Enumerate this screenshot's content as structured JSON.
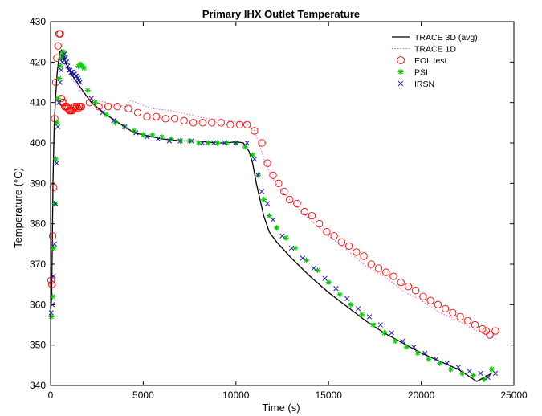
{
  "chart_data": {
    "type": "line",
    "title": "Primary IHX Outlet Temperature",
    "xlabel": "Time (s)",
    "ylabel": "Temperature (°C)",
    "xlim": [
      0,
      25000
    ],
    "ylim": [
      340,
      430
    ],
    "xticks": [
      0,
      5000,
      10000,
      15000,
      20000,
      25000
    ],
    "yticks": [
      340,
      350,
      360,
      370,
      380,
      390,
      400,
      410,
      420,
      430
    ],
    "grid": false,
    "legend_position": "top-right",
    "colors": {
      "trace3d": "#000000",
      "trace1d": "#e060e0",
      "eol": "#ff0000",
      "psi": "#00cc00",
      "irsn": "#1a1aa6"
    },
    "series": [
      {
        "name": "TRACE 3D (avg)",
        "style": "solid-line",
        "x": [
          0,
          60,
          130,
          200,
          280,
          350,
          420,
          500,
          600,
          700,
          800,
          1000,
          1200,
          1500,
          1800,
          2200,
          2600,
          3000,
          3500,
          4000,
          4500,
          5000,
          5500,
          6000,
          6500,
          7000,
          7500,
          8000,
          8500,
          9000,
          9500,
          10000,
          10400,
          10700,
          10900,
          11100,
          11300,
          11500,
          11800,
          12200,
          13000,
          14000,
          15000,
          16000,
          17000,
          18000,
          19000,
          20000,
          21000,
          22000,
          23000,
          23800
        ],
        "y": [
          358,
          362,
          390,
          405,
          412,
          417,
          420,
          422.5,
          423,
          422,
          420,
          418,
          416.5,
          414.5,
          412.5,
          410,
          408.5,
          407,
          405.5,
          404,
          402.5,
          402,
          401.5,
          401,
          400.8,
          400.5,
          400.5,
          400.5,
          400.2,
          400,
          400,
          400.3,
          400,
          398,
          395,
          390,
          386,
          382,
          378,
          375.5,
          371.5,
          367,
          363,
          359.5,
          356,
          353,
          350.5,
          348,
          346,
          344,
          341,
          343
        ]
      },
      {
        "name": "TRACE 1D",
        "style": "dotted-line",
        "x": [
          0,
          60,
          150,
          250,
          350,
          450,
          550,
          650,
          800,
          1000,
          1200,
          1400,
          1600,
          2000,
          2500,
          3000,
          3500,
          4000,
          4300,
          4600,
          5500,
          6500,
          7500,
          8500,
          9500,
          10500,
          11000,
          11300,
          11600,
          12000,
          12500,
          13000,
          14000,
          15000,
          16000,
          17000,
          18000,
          19000,
          20000,
          21000,
          22000,
          23000,
          24000
        ],
        "y": [
          360,
          372,
          398,
          412,
          418,
          421,
          422,
          421,
          419,
          417,
          415.5,
          414.5,
          413,
          411.5,
          410.5,
          410,
          409.5,
          409,
          410.5,
          410,
          408.5,
          408,
          407,
          406,
          405.5,
          405,
          403,
          399,
          395,
          391,
          388,
          385.5,
          381,
          377,
          373.5,
          369.5,
          367,
          363.5,
          361,
          358,
          356,
          353.5,
          351.5
        ]
      },
      {
        "name": "EOL test",
        "style": "circle-marker",
        "x": [
          30,
          70,
          110,
          160,
          220,
          280,
          340,
          400,
          460,
          520,
          580,
          640,
          700,
          760,
          820,
          880,
          940,
          1000,
          1060,
          1120,
          1180,
          1240,
          1300,
          1360,
          1420,
          1480,
          1540,
          1600,
          1660,
          2100,
          2600,
          3100,
          3600,
          4200,
          4700,
          5200,
          5700,
          6200,
          6700,
          7200,
          7700,
          8200,
          8700,
          9200,
          9700,
          10200,
          10600,
          11000,
          11400,
          11700,
          12000,
          12300,
          12600,
          12900,
          13300,
          13700,
          14100,
          14500,
          14900,
          15300,
          15700,
          16100,
          16500,
          16900,
          17300,
          17700,
          18100,
          18500,
          18900,
          19300,
          19700,
          20100,
          20500,
          20900,
          21300,
          21700,
          22100,
          22500,
          22900,
          23300,
          23500,
          23700,
          24000
        ],
        "y": [
          366,
          365,
          377,
          389,
          406,
          415,
          421,
          424,
          427,
          427,
          411,
          410,
          410,
          409,
          409,
          409,
          408.5,
          408,
          408,
          408,
          408,
          408.5,
          409,
          408.5,
          409,
          408.5,
          409,
          409,
          409,
          410,
          409,
          409,
          409,
          408.5,
          407.5,
          406.5,
          406.5,
          406,
          406,
          405.5,
          405,
          405,
          405,
          405,
          404.5,
          404.5,
          404.5,
          403,
          400,
          395,
          392,
          390,
          388,
          386,
          385,
          383,
          382,
          380,
          378,
          377,
          375.5,
          374.5,
          373,
          372,
          370,
          369,
          368,
          367,
          365.5,
          364.5,
          363.5,
          362,
          361,
          360,
          359,
          358,
          357,
          356,
          355,
          354,
          353.5,
          352.5,
          353.5
        ]
      },
      {
        "name": "PSI",
        "style": "star-marker",
        "x": [
          40,
          100,
          160,
          220,
          280,
          340,
          400,
          460,
          520,
          580,
          640,
          700,
          1500,
          1600,
          1700,
          1800,
          2000,
          2400,
          3000,
          3500,
          4000,
          4500,
          5000,
          5500,
          6000,
          6500,
          7000,
          7500,
          8000,
          8500,
          9000,
          9500,
          10000,
          10500,
          10900,
          11200,
          11500,
          11800,
          12200,
          12700,
          13200,
          13800,
          14400,
          15000,
          15600,
          16200,
          16800,
          17400,
          18000,
          18600,
          19200,
          19800,
          20400,
          21000,
          21600,
          22200,
          22800,
          23400,
          23800
        ],
        "y": [
          357,
          362,
          374,
          385,
          396,
          405,
          411,
          416,
          419,
          421,
          422,
          422.5,
          419,
          419.5,
          419,
          418.5,
          413,
          410,
          407,
          405,
          404,
          403,
          402,
          402,
          401.5,
          401,
          400.5,
          400.5,
          400,
          400,
          400,
          400,
          400,
          399,
          397,
          392,
          386,
          382,
          379,
          376.5,
          374,
          371,
          368.5,
          365.5,
          362.5,
          360,
          357.5,
          355,
          353,
          351,
          349.5,
          348,
          346.5,
          345.5,
          344,
          343,
          342.5,
          341.5,
          344
        ]
      },
      {
        "name": "IRSN",
        "style": "x-marker",
        "x": [
          30,
          90,
          150,
          210,
          270,
          330,
          390,
          450,
          510,
          570,
          630,
          690,
          750,
          810,
          870,
          930,
          990,
          1050,
          1110,
          1170,
          1230,
          1290,
          1350,
          1410,
          1470,
          1530,
          1590,
          2200,
          2800,
          3400,
          4000,
          4600,
          5200,
          5800,
          6400,
          7000,
          7600,
          8200,
          8800,
          9400,
          10000,
          10600,
          11000,
          11200,
          11400,
          11700,
          12000,
          12500,
          13000,
          13600,
          14200,
          14800,
          15400,
          16000,
          16600,
          17200,
          17800,
          18400,
          19000,
          19600,
          20200,
          20800,
          21400,
          22000,
          22600,
          23200,
          23600,
          24000
        ],
        "y": [
          358,
          360,
          367,
          375,
          385,
          395,
          404,
          410,
          415,
          418,
          420,
          421,
          422,
          421,
          420,
          419,
          418,
          418,
          417.5,
          417.5,
          417,
          417,
          416.5,
          416.5,
          416,
          415.5,
          415,
          411,
          407.5,
          405.5,
          404,
          402.5,
          401.5,
          401,
          400.5,
          400.5,
          400.5,
          400,
          400,
          400,
          400,
          400,
          396,
          392,
          388,
          385,
          381,
          377,
          374,
          371.5,
          369,
          366.5,
          364,
          361.5,
          359,
          357,
          355,
          353,
          351,
          349.5,
          348,
          346.5,
          345.5,
          344.5,
          343.5,
          343,
          342,
          343
        ]
      }
    ]
  }
}
